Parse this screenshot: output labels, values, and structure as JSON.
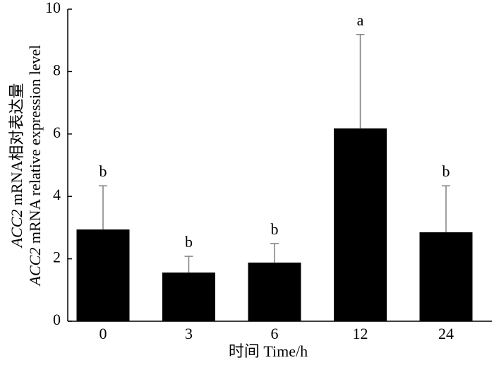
{
  "chart_data": {
    "type": "bar",
    "x_label": "时间 Time/h",
    "y_label_lines": [
      [
        "ACC2",
        " mRNA相对表达量"
      ],
      [
        "ACC2",
        " mRNA relative expression level"
      ]
    ],
    "categories": [
      "0",
      "3",
      "6",
      "12",
      "24"
    ],
    "values": [
      2.94,
      1.56,
      1.88,
      6.18,
      2.85
    ],
    "errors": [
      1.4,
      0.52,
      0.61,
      3.01,
      1.49
    ],
    "annotations": [
      "b",
      "b",
      "b",
      "a",
      "b"
    ],
    "color": "#000000",
    "error_color": "#808080",
    "ylim": [
      0,
      10
    ],
    "yticks": [
      0,
      2,
      4,
      6,
      8,
      10
    ]
  }
}
